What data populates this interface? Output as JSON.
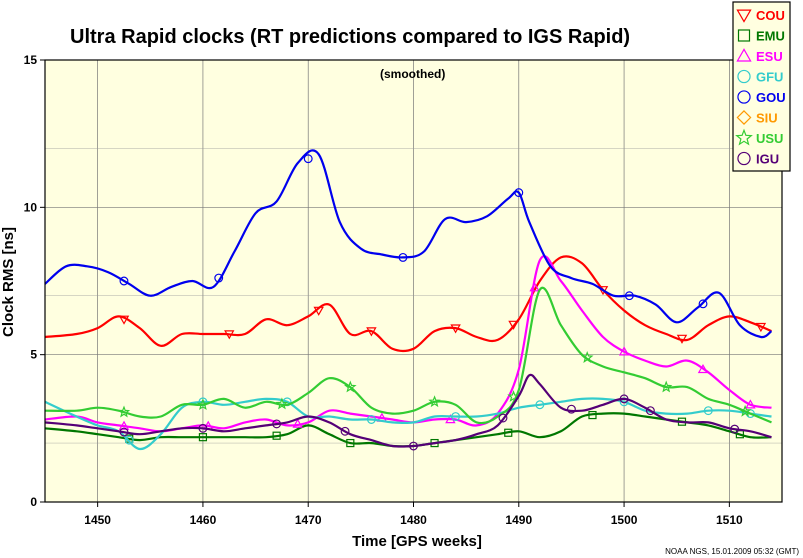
{
  "chart_data": {
    "type": "line",
    "title": "Ultra Rapid clocks (RT predictions compared to IGS Rapid)",
    "subtitle": "(smoothed)",
    "xlabel": "Time [GPS weeks]",
    "ylabel": "Clock RMS [ns]",
    "credit": "NOAA NGS, 15.01.2009 05:32 (GMT)",
    "xlim": [
      1445,
      1515
    ],
    "ylim": [
      0,
      15
    ],
    "xticks": [
      1450,
      1460,
      1470,
      1480,
      1490,
      1500,
      1510
    ],
    "yticks": [
      0,
      5,
      10,
      15
    ],
    "grid": true,
    "legend_position": "top-right",
    "plot_background": "#ffffe0",
    "series": [
      {
        "name": "COU",
        "color": "#ff0000",
        "marker": "triangle-down",
        "x": [
          1445,
          1448,
          1450,
          1452,
          1454,
          1456,
          1458,
          1460,
          1462,
          1464,
          1466,
          1468,
          1470,
          1472,
          1474,
          1476,
          1478,
          1480,
          1482,
          1484,
          1486,
          1488,
          1490,
          1492,
          1494,
          1496,
          1498,
          1500,
          1502,
          1504,
          1506,
          1508,
          1510,
          1512,
          1514
        ],
        "y": [
          5.6,
          5.7,
          5.9,
          6.3,
          5.9,
          5.3,
          5.7,
          5.7,
          5.7,
          5.7,
          6.2,
          6.0,
          6.3,
          6.7,
          5.7,
          5.8,
          5.2,
          5.2,
          5.8,
          5.9,
          5.6,
          5.5,
          6.2,
          7.5,
          8.3,
          8.1,
          7.2,
          6.5,
          6.0,
          5.7,
          5.5,
          6.0,
          6.3,
          6.1,
          5.8
        ],
        "marker_x": [
          1452.5,
          1462.5,
          1471,
          1476,
          1484,
          1489.5,
          1498,
          1505.5,
          1513
        ]
      },
      {
        "name": "EMU",
        "color": "#007700",
        "marker": "square",
        "x": [
          1445,
          1448,
          1450,
          1452,
          1454,
          1456,
          1458,
          1460,
          1462,
          1464,
          1466,
          1468,
          1470,
          1472,
          1474,
          1476,
          1478,
          1480,
          1482,
          1484,
          1486,
          1488,
          1490,
          1492,
          1494,
          1496,
          1498,
          1500,
          1502,
          1504,
          1506,
          1508,
          1510,
          1512,
          1514
        ],
        "y": [
          2.5,
          2.4,
          2.3,
          2.2,
          2.1,
          2.2,
          2.2,
          2.2,
          2.2,
          2.2,
          2.2,
          2.3,
          2.6,
          2.3,
          2.0,
          2.0,
          1.9,
          1.9,
          2.0,
          2.1,
          2.2,
          2.3,
          2.4,
          2.2,
          2.4,
          2.9,
          3.0,
          3.0,
          2.9,
          2.8,
          2.7,
          2.6,
          2.4,
          2.2,
          2.2
        ],
        "marker_x": [
          1453,
          1460,
          1467,
          1474,
          1482,
          1489,
          1497,
          1505.5,
          1511
        ]
      },
      {
        "name": "ESU",
        "color": "#ff00ff",
        "marker": "triangle",
        "x": [
          1445,
          1448,
          1450,
          1452,
          1454,
          1456,
          1458,
          1460,
          1462,
          1464,
          1466,
          1468,
          1470,
          1472,
          1474,
          1476,
          1478,
          1480,
          1482,
          1484,
          1486,
          1488,
          1490,
          1492,
          1494,
          1496,
          1498,
          1500,
          1502,
          1504,
          1506,
          1508,
          1510,
          1512,
          1514
        ],
        "y": [
          2.8,
          2.9,
          2.7,
          2.6,
          2.5,
          2.4,
          2.5,
          2.6,
          2.5,
          2.7,
          2.8,
          2.6,
          2.7,
          3.1,
          3.0,
          2.9,
          2.8,
          2.7,
          2.8,
          2.8,
          2.6,
          3.0,
          4.5,
          8.2,
          7.5,
          6.5,
          5.6,
          5.1,
          4.8,
          4.6,
          4.8,
          4.4,
          3.8,
          3.3,
          3.2
        ],
        "marker_x": [
          1452.5,
          1460.5,
          1469,
          1477,
          1483.5,
          1491.5,
          1500,
          1507.5,
          1512
        ]
      },
      {
        "name": "GFU",
        "color": "#33cccc",
        "marker": "circle",
        "x": [
          1445,
          1448,
          1450,
          1452,
          1454,
          1456,
          1458,
          1460,
          1462,
          1464,
          1466,
          1468,
          1470,
          1472,
          1474,
          1476,
          1478,
          1480,
          1482,
          1484,
          1486,
          1488,
          1490,
          1492,
          1494,
          1496,
          1498,
          1500,
          1502,
          1504,
          1506,
          1508,
          1510,
          1512,
          1514
        ],
        "y": [
          3.4,
          2.9,
          2.6,
          2.4,
          1.8,
          2.3,
          3.2,
          3.4,
          3.3,
          3.4,
          3.5,
          3.4,
          2.9,
          2.9,
          2.8,
          2.8,
          2.7,
          2.7,
          2.9,
          2.9,
          2.9,
          3.0,
          3.2,
          3.3,
          3.4,
          3.5,
          3.5,
          3.4,
          3.1,
          3.0,
          3.0,
          3.1,
          3.1,
          3.0,
          2.9
        ],
        "marker_x": [
          1453,
          1460,
          1468,
          1476,
          1484,
          1492,
          1500,
          1508,
          1512
        ]
      },
      {
        "name": "GOU",
        "color": "#0000ee",
        "marker": "circle",
        "x": [
          1445,
          1447,
          1449,
          1451,
          1453,
          1455,
          1457,
          1459,
          1461,
          1463,
          1465,
          1467,
          1469,
          1471,
          1473,
          1475,
          1477,
          1479,
          1481,
          1483,
          1485,
          1487,
          1489,
          1490,
          1491,
          1493,
          1495,
          1497,
          1499,
          1501,
          1503,
          1505,
          1507,
          1509,
          1511,
          1513,
          1514
        ],
        "y": [
          7.4,
          8.0,
          8.0,
          7.8,
          7.4,
          7.0,
          7.3,
          7.5,
          7.3,
          8.5,
          9.8,
          10.2,
          11.5,
          11.8,
          9.5,
          8.6,
          8.4,
          8.3,
          8.5,
          9.6,
          9.5,
          9.7,
          10.3,
          10.5,
          9.5,
          8.0,
          7.6,
          7.4,
          7.0,
          7.0,
          6.7,
          6.1,
          6.6,
          7.1,
          6.0,
          5.6,
          5.8
        ],
        "marker_x": [
          1452.5,
          1461.5,
          1470,
          1479,
          1490,
          1500.5,
          1507.5
        ]
      },
      {
        "name": "SIU",
        "color": "#ff9900",
        "marker": "diamond",
        "x": [],
        "y": [],
        "marker_x": []
      },
      {
        "name": "USU",
        "color": "#33cc33",
        "marker": "star",
        "x": [
          1445,
          1448,
          1450,
          1452,
          1454,
          1456,
          1458,
          1460,
          1462,
          1464,
          1466,
          1468,
          1470,
          1472,
          1474,
          1476,
          1478,
          1480,
          1482,
          1484,
          1486,
          1488,
          1490,
          1492,
          1494,
          1496,
          1498,
          1500,
          1502,
          1504,
          1506,
          1508,
          1510,
          1512,
          1514
        ],
        "y": [
          3.1,
          3.1,
          3.2,
          3.1,
          2.9,
          2.9,
          3.3,
          3.3,
          3.5,
          3.2,
          3.4,
          3.3,
          3.7,
          4.2,
          3.9,
          3.2,
          3.0,
          3.1,
          3.4,
          3.3,
          2.7,
          2.9,
          3.8,
          7.2,
          6.0,
          5.0,
          4.6,
          4.4,
          4.2,
          3.9,
          3.9,
          3.5,
          3.3,
          3.0,
          2.7
        ],
        "marker_x": [
          1452.5,
          1460,
          1467.5,
          1474,
          1482,
          1489.5,
          1496.5,
          1504,
          1511.5
        ]
      },
      {
        "name": "IGU",
        "color": "#550077",
        "marker": "circle",
        "x": [
          1445,
          1448,
          1450,
          1452,
          1454,
          1456,
          1458,
          1460,
          1462,
          1464,
          1466,
          1468,
          1470,
          1472,
          1474,
          1476,
          1478,
          1480,
          1482,
          1484,
          1486,
          1488,
          1490,
          1491,
          1492,
          1494,
          1496,
          1498,
          1500,
          1502,
          1504,
          1506,
          1508,
          1510,
          1512,
          1514
        ],
        "y": [
          2.7,
          2.6,
          2.5,
          2.4,
          2.3,
          2.4,
          2.5,
          2.5,
          2.4,
          2.5,
          2.6,
          2.7,
          2.9,
          2.7,
          2.3,
          2.1,
          1.9,
          1.9,
          2.0,
          2.1,
          2.3,
          2.6,
          3.6,
          4.3,
          4.0,
          3.2,
          3.1,
          3.3,
          3.5,
          3.2,
          2.8,
          2.7,
          2.7,
          2.5,
          2.4,
          2.2
        ],
        "marker_x": [
          1452.5,
          1460,
          1467,
          1473.5,
          1480,
          1488.5,
          1495,
          1500,
          1502.5,
          1510.5
        ]
      }
    ]
  }
}
